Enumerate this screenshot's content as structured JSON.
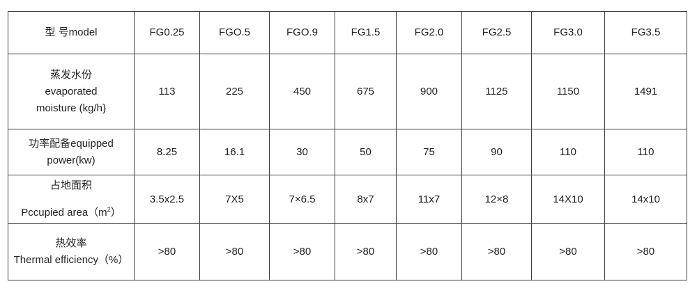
{
  "header": {
    "label": "型  号model",
    "models": [
      "FG0.25",
      "FGO.5",
      "FGO.9",
      "FG1.5",
      "FG2.0",
      "FG2.5",
      "FG3.0",
      "FG3.5"
    ]
  },
  "rows": [
    {
      "label_cn": "蒸发水份",
      "label_en1": "evaporated",
      "label_en2": "moisture (kg/h}",
      "values": [
        "113",
        "225",
        "450",
        "675",
        "900",
        "1125",
        "1150",
        "1491"
      ]
    },
    {
      "label_cn": "功率配备equipped",
      "label_en1": "power(kw)",
      "values": [
        "8.25",
        "16.1",
        "30",
        "50",
        "75",
        "90",
        "110",
        "110"
      ]
    },
    {
      "label_cn": "占地面积",
      "label_en1": "Pccupied area（m",
      "label_sup": "2",
      "label_end": "）",
      "values": [
        "3.5x2.5",
        "7X5",
        "7×6.5",
        "8x7",
        "11x7",
        "12×8",
        "14X10",
        "14x10"
      ]
    },
    {
      "label_cn": "热效率",
      "label_en1": "Thermal efficiency（%）",
      "values": [
        ">80",
        ">80",
        ">80",
        ">80",
        ">80",
        ">80",
        ">80",
        ">80"
      ]
    }
  ]
}
